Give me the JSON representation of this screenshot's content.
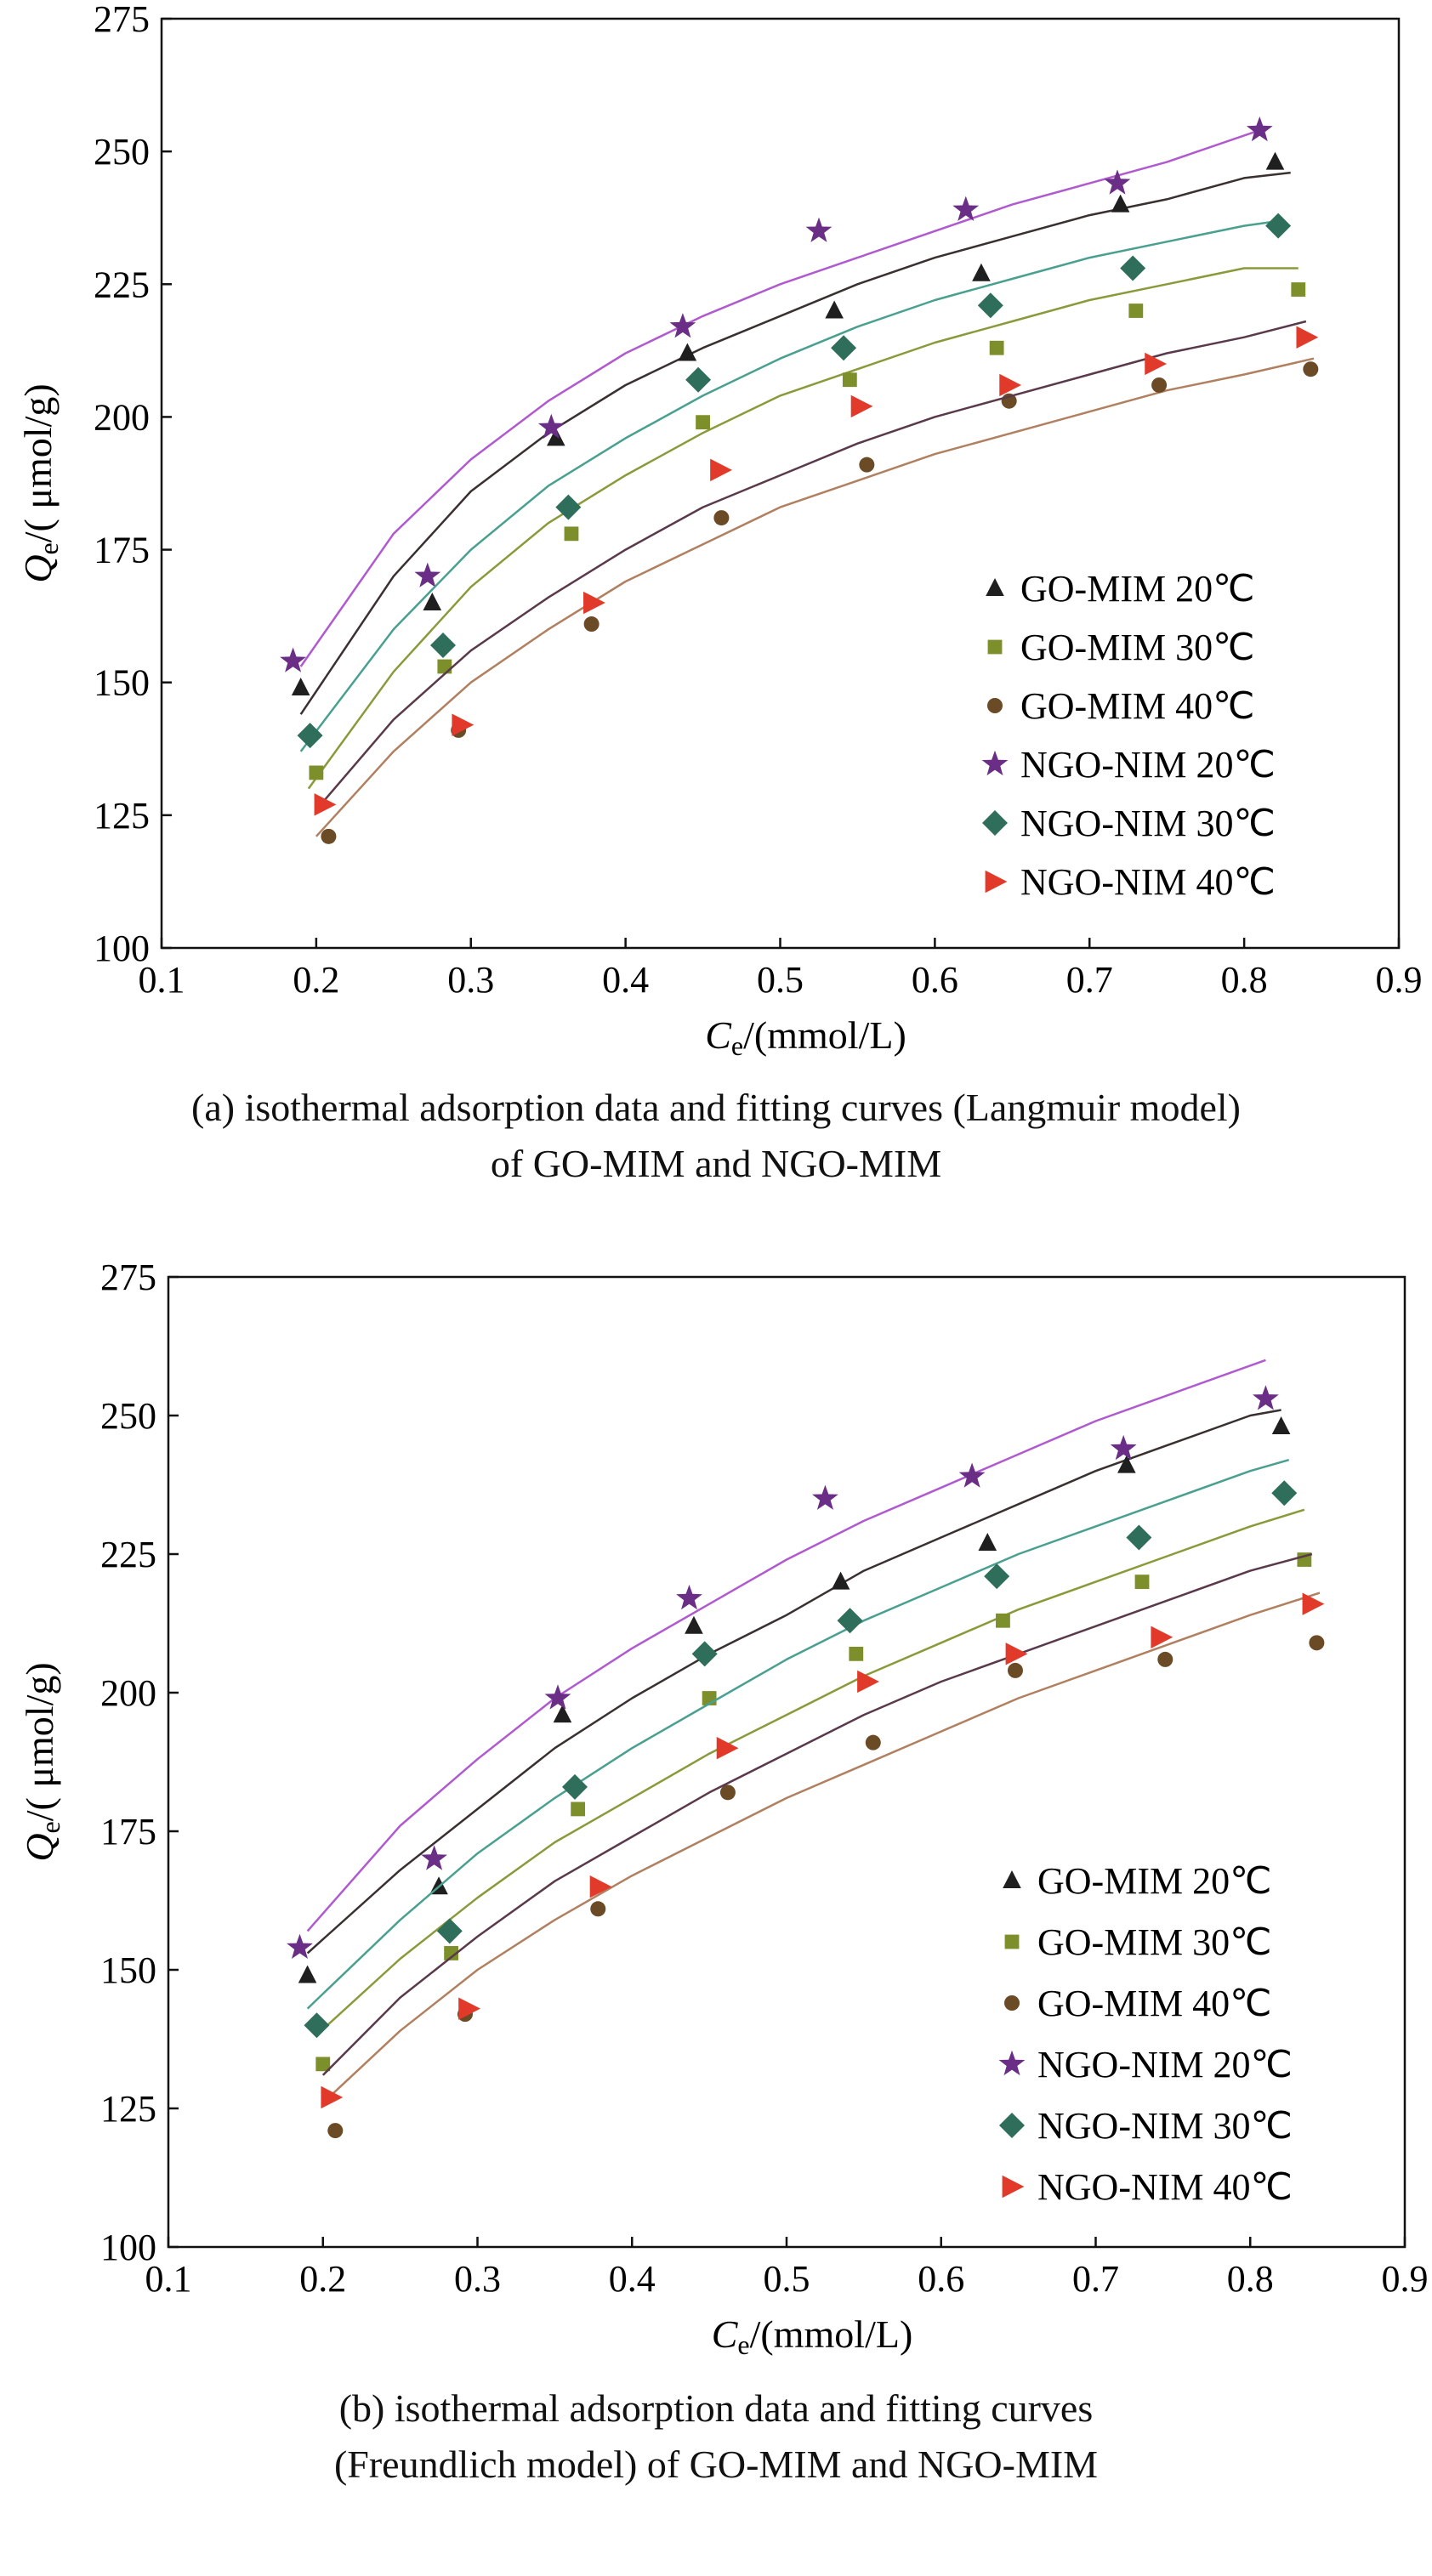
{
  "colors": {
    "go20": "#1f1f1f",
    "go30": "#7c8f2a",
    "go40": "#6b4a26",
    "ngo20": "#6a2e86",
    "ngo30": "#2e6e5a",
    "ngo40": "#e23a2a",
    "curve_go20": "#3a3030",
    "curve_go30": "#8a9a3a",
    "curve_go40": "#b08060",
    "curve_ngo20": "#b05ad0",
    "curve_ngo30": "#4aa090",
    "curve_ngo40": "#5a3a4a"
  },
  "chart_data": [
    {
      "type": "scatter",
      "title": "",
      "xlabel_main": "C",
      "xlabel_sub": "e",
      "xlabel_rest": "/(mmol/L)",
      "ylabel_main": "Q",
      "ylabel_sub": "e",
      "ylabel_rest": "/( μmol/g)",
      "xlim": [
        0.1,
        0.9
      ],
      "ylim": [
        100,
        275
      ],
      "xticks": [
        "0.1",
        "0.2",
        "0.3",
        "0.4",
        "0.5",
        "0.6",
        "0.7",
        "0.8",
        "0.9"
      ],
      "yticks": [
        "100",
        "125",
        "150",
        "175",
        "200",
        "225",
        "250",
        "275"
      ],
      "legend_position": "bottom-right",
      "caption_line1": "(a) isothermal adsorption data and fitting curves (Langmuir model)",
      "caption_line2": "of GO-MIM and NGO-MIM",
      "series": [
        {
          "name": "GO-MIM 20℃",
          "marker": "triangle",
          "colorKey": "go20",
          "curveColorKey": "curve_go20",
          "x": [
            0.19,
            0.275,
            0.355,
            0.44,
            0.535,
            0.63,
            0.72,
            0.82
          ],
          "y": [
            149,
            165,
            196,
            212,
            220,
            227,
            240,
            248
          ],
          "fit": {
            "x": [
              0.19,
              0.25,
              0.3,
              0.35,
              0.4,
              0.45,
              0.5,
              0.55,
              0.6,
              0.65,
              0.7,
              0.75,
              0.8,
              0.83
            ],
            "y": [
              144,
              170,
              186,
              197,
              206,
              213,
              219,
              225,
              230,
              234,
              238,
              241,
              245,
              246
            ]
          }
        },
        {
          "name": "GO-MIM 30℃",
          "marker": "square",
          "colorKey": "go30",
          "curveColorKey": "curve_go30",
          "x": [
            0.2,
            0.283,
            0.365,
            0.45,
            0.545,
            0.64,
            0.73,
            0.835
          ],
          "y": [
            133,
            153,
            178,
            199,
            207,
            213,
            220,
            224
          ],
          "fit": {
            "x": [
              0.195,
              0.25,
              0.3,
              0.35,
              0.4,
              0.45,
              0.5,
              0.55,
              0.6,
              0.65,
              0.7,
              0.75,
              0.8,
              0.835
            ],
            "y": [
              130,
              152,
              168,
              180,
              189,
              197,
              204,
              209,
              214,
              218,
              222,
              225,
              228,
              228
            ]
          }
        },
        {
          "name": "GO-MIM 40℃",
          "marker": "circle",
          "colorKey": "go40",
          "curveColorKey": "curve_go40",
          "x": [
            0.208,
            0.292,
            0.378,
            0.462,
            0.556,
            0.648,
            0.745,
            0.843
          ],
          "y": [
            121,
            141,
            161,
            181,
            191,
            203,
            206,
            209
          ],
          "fit": {
            "x": [
              0.2,
              0.25,
              0.3,
              0.35,
              0.4,
              0.45,
              0.5,
              0.55,
              0.6,
              0.65,
              0.7,
              0.75,
              0.8,
              0.845
            ],
            "y": [
              121,
              137,
              150,
              160,
              169,
              176,
              183,
              188,
              193,
              197,
              201,
              205,
              208,
              211
            ]
          }
        },
        {
          "name": "NGO-NIM 20℃",
          "marker": "star",
          "colorKey": "ngo20",
          "curveColorKey": "curve_ngo20",
          "x": [
            0.185,
            0.272,
            0.352,
            0.437,
            0.525,
            0.62,
            0.718,
            0.81
          ],
          "y": [
            154,
            170,
            198,
            217,
            235,
            239,
            244,
            254
          ],
          "fit": {
            "x": [
              0.19,
              0.25,
              0.3,
              0.35,
              0.4,
              0.45,
              0.5,
              0.55,
              0.6,
              0.65,
              0.7,
              0.75,
              0.81
            ],
            "y": [
              153,
              178,
              192,
              203,
              212,
              219,
              225,
              230,
              235,
              240,
              244,
              248,
              254
            ]
          }
        },
        {
          "name": "NGO-NIM 30℃",
          "marker": "diamond",
          "colorKey": "ngo30",
          "curveColorKey": "curve_ngo30",
          "x": [
            0.196,
            0.282,
            0.363,
            0.447,
            0.541,
            0.636,
            0.728,
            0.822
          ],
          "y": [
            140,
            157,
            183,
            207,
            213,
            221,
            228,
            236
          ],
          "fit": {
            "x": [
              0.19,
              0.25,
              0.3,
              0.35,
              0.4,
              0.45,
              0.5,
              0.55,
              0.6,
              0.65,
              0.7,
              0.75,
              0.8,
              0.825
            ],
            "y": [
              137,
              160,
              175,
              187,
              196,
              204,
              211,
              217,
              222,
              226,
              230,
              233,
              236,
              237
            ]
          }
        },
        {
          "name": "NGO-NIM 40℃",
          "marker": "triangle-right",
          "colorKey": "ngo40",
          "curveColorKey": "curve_ngo40",
          "x": [
            0.205,
            0.294,
            0.379,
            0.461,
            0.552,
            0.648,
            0.742,
            0.84
          ],
          "y": [
            127,
            142,
            165,
            190,
            202,
            206,
            210,
            215
          ],
          "fit": {
            "x": [
              0.2,
              0.25,
              0.3,
              0.35,
              0.4,
              0.45,
              0.5,
              0.55,
              0.6,
              0.65,
              0.7,
              0.75,
              0.8,
              0.84
            ],
            "y": [
              126,
              143,
              156,
              166,
              175,
              183,
              189,
              195,
              200,
              204,
              208,
              212,
              215,
              218
            ]
          }
        }
      ]
    },
    {
      "type": "scatter",
      "title": "",
      "xlabel_main": "C",
      "xlabel_sub": "e",
      "xlabel_rest": "/(mmol/L)",
      "ylabel_main": "Q",
      "ylabel_sub": "e",
      "ylabel_rest": "/( μmol/g)",
      "xlim": [
        0.1,
        0.9
      ],
      "ylim": [
        100,
        275
      ],
      "xticks": [
        "0.1",
        "0.2",
        "0.3",
        "0.4",
        "0.5",
        "0.6",
        "0.7",
        "0.8",
        "0.9"
      ],
      "yticks": [
        "100",
        "125",
        "150",
        "175",
        "200",
        "225",
        "250",
        "275"
      ],
      "legend_position": "bottom-right",
      "caption_line1": "(b) isothermal adsorption data and fitting curves",
      "caption_line2": "(Freundlich model) of GO-MIM and NGO-MIM",
      "series": [
        {
          "name": "GO-MIM 20℃",
          "marker": "triangle",
          "colorKey": "go20",
          "curveColorKey": "curve_go20",
          "x": [
            0.19,
            0.275,
            0.355,
            0.44,
            0.535,
            0.63,
            0.72,
            0.82
          ],
          "y": [
            149,
            165,
            196,
            212,
            220,
            227,
            241,
            248
          ],
          "fit": {
            "x": [
              0.19,
              0.25,
              0.3,
              0.35,
              0.4,
              0.45,
              0.5,
              0.55,
              0.6,
              0.65,
              0.7,
              0.75,
              0.8,
              0.82
            ],
            "y": [
              153,
              168,
              179,
              190,
              199,
              207,
              214,
              222,
              228,
              234,
              240,
              245,
              250,
              251
            ]
          }
        },
        {
          "name": "GO-MIM 30℃",
          "marker": "square",
          "colorKey": "go30",
          "curveColorKey": "curve_go30",
          "x": [
            0.2,
            0.283,
            0.365,
            0.45,
            0.545,
            0.64,
            0.73,
            0.835
          ],
          "y": [
            133,
            153,
            179,
            199,
            207,
            213,
            220,
            224
          ],
          "fit": {
            "x": [
              0.195,
              0.25,
              0.3,
              0.35,
              0.4,
              0.45,
              0.5,
              0.55,
              0.6,
              0.65,
              0.7,
              0.75,
              0.8,
              0.835
            ],
            "y": [
              138,
              152,
              163,
              173,
              181,
              189,
              196,
              203,
              209,
              215,
              220,
              225,
              230,
              233
            ]
          }
        },
        {
          "name": "GO-MIM 40℃",
          "marker": "circle",
          "colorKey": "go40",
          "curveColorKey": "curve_go40",
          "x": [
            0.208,
            0.292,
            0.378,
            0.462,
            0.556,
            0.648,
            0.745,
            0.843
          ],
          "y": [
            121,
            142,
            161,
            182,
            191,
            204,
            206,
            209
          ],
          "fit": {
            "x": [
              0.2,
              0.25,
              0.3,
              0.35,
              0.4,
              0.45,
              0.5,
              0.55,
              0.6,
              0.65,
              0.7,
              0.75,
              0.8,
              0.845
            ],
            "y": [
              126,
              139,
              150,
              159,
              167,
              174,
              181,
              187,
              193,
              199,
              204,
              209,
              214,
              218
            ]
          }
        },
        {
          "name": "NGO-NIM 20℃",
          "marker": "star",
          "colorKey": "ngo20",
          "curveColorKey": "curve_ngo20",
          "x": [
            0.185,
            0.272,
            0.352,
            0.437,
            0.525,
            0.62,
            0.718,
            0.81
          ],
          "y": [
            154,
            170,
            199,
            217,
            235,
            239,
            244,
            253
          ],
          "fit": {
            "x": [
              0.19,
              0.25,
              0.3,
              0.35,
              0.4,
              0.45,
              0.5,
              0.55,
              0.6,
              0.65,
              0.7,
              0.75,
              0.81
            ],
            "y": [
              157,
              176,
              188,
              199,
              208,
              216,
              224,
              231,
              237,
              243,
              249,
              254,
              260
            ]
          }
        },
        {
          "name": "NGO-NIM 30℃",
          "marker": "diamond",
          "colorKey": "ngo30",
          "curveColorKey": "curve_ngo30",
          "x": [
            0.196,
            0.282,
            0.363,
            0.447,
            0.541,
            0.636,
            0.728,
            0.822
          ],
          "y": [
            140,
            157,
            183,
            207,
            213,
            221,
            228,
            236
          ],
          "fit": {
            "x": [
              0.19,
              0.25,
              0.3,
              0.35,
              0.4,
              0.45,
              0.5,
              0.55,
              0.6,
              0.65,
              0.7,
              0.75,
              0.8,
              0.825
            ],
            "y": [
              143,
              159,
              171,
              181,
              190,
              198,
              206,
              213,
              219,
              225,
              230,
              235,
              240,
              242
            ]
          }
        },
        {
          "name": "NGO-NIM 40℃",
          "marker": "triangle-right",
          "colorKey": "ngo40",
          "curveColorKey": "curve_ngo40",
          "x": [
            0.205,
            0.294,
            0.379,
            0.461,
            0.552,
            0.648,
            0.742,
            0.84
          ],
          "y": [
            127,
            143,
            165,
            190,
            202,
            207,
            210,
            216
          ],
          "fit": {
            "x": [
              0.2,
              0.25,
              0.3,
              0.35,
              0.4,
              0.45,
              0.5,
              0.55,
              0.6,
              0.65,
              0.7,
              0.75,
              0.8,
              0.84
            ],
            "y": [
              131,
              145,
              156,
              166,
              174,
              182,
              189,
              196,
              202,
              207,
              212,
              217,
              222,
              225
            ]
          }
        }
      ]
    }
  ]
}
